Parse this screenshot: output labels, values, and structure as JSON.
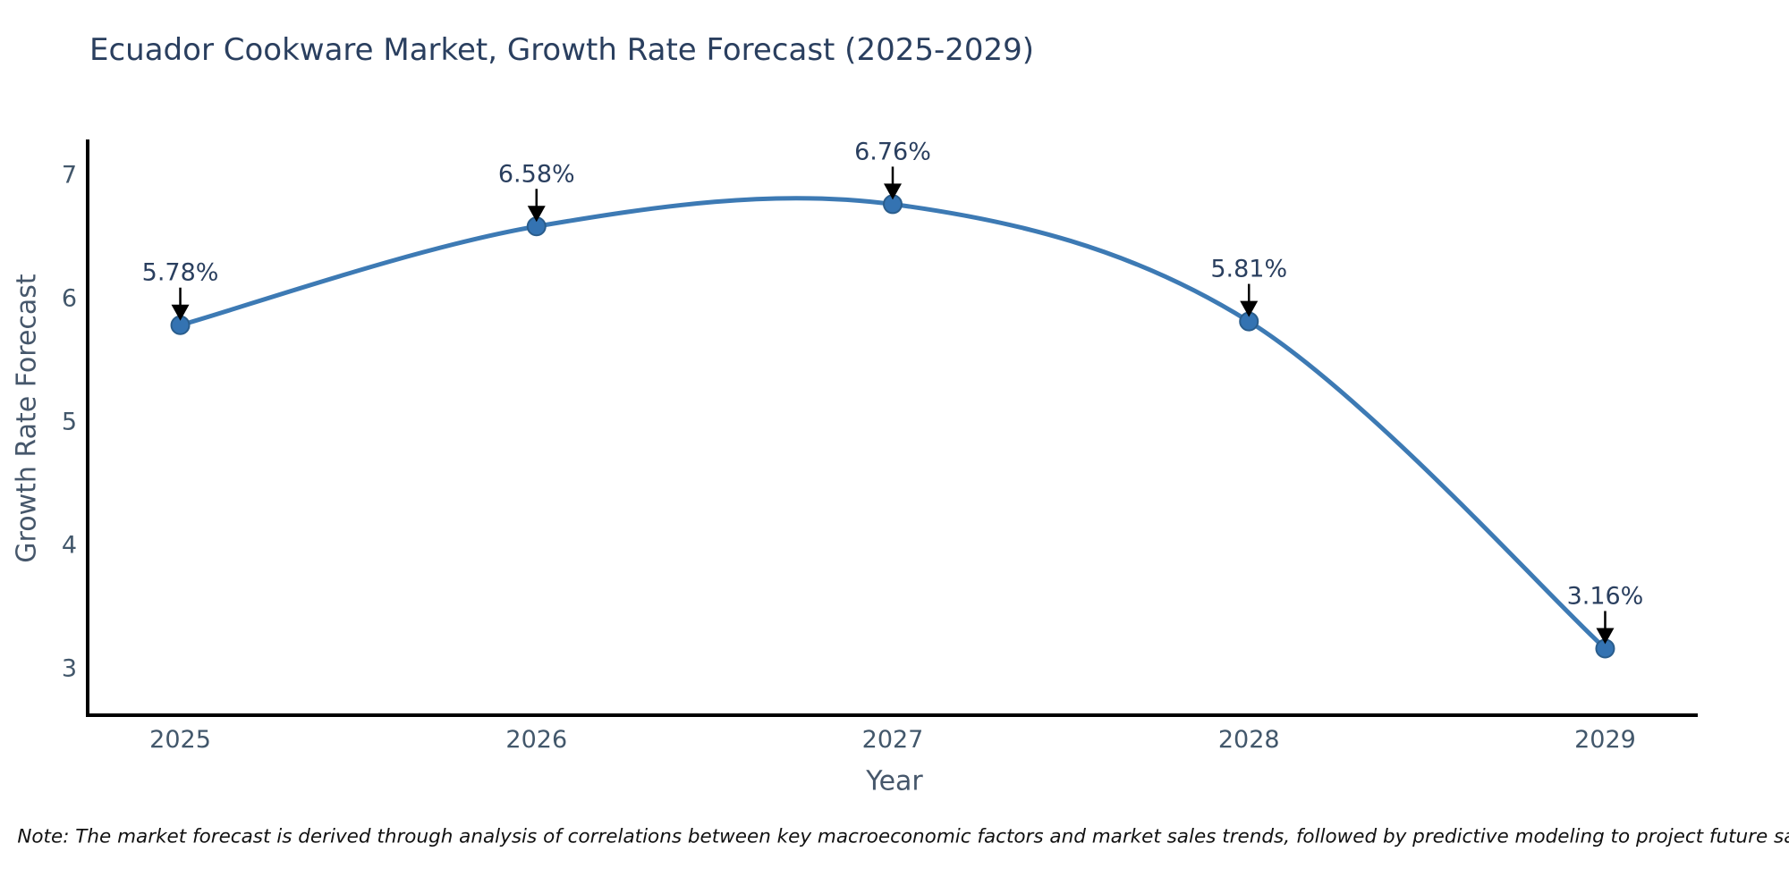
{
  "chart_data": {
    "type": "line",
    "title": "Ecuador Cookware Market, Growth Rate Forecast (2025-2029)",
    "xlabel": "Year",
    "ylabel": "Growth Rate Forecast",
    "x": [
      2025,
      2026,
      2027,
      2028,
      2029
    ],
    "x_tick_labels": [
      "2025",
      "2026",
      "2027",
      "2028",
      "2029"
    ],
    "series": [
      {
        "name": "Growth Rate Forecast",
        "values": [
          5.78,
          6.58,
          6.76,
          5.81,
          3.16
        ]
      }
    ],
    "point_labels": [
      "5.78%",
      "6.58%",
      "6.76%",
      "5.81%",
      "3.16%"
    ],
    "y_ticks": [
      3,
      4,
      5,
      6,
      7
    ],
    "ylim": [
      2.62,
      7.27
    ],
    "xlim": [
      2024.74,
      2029.26
    ],
    "grid": false,
    "legend": false,
    "line_shape": "spline",
    "colors": {
      "line": "#3d7ab4",
      "marker": "#3473b2",
      "marker_edge": "#2a5d8c",
      "annotation_text": "#2a3f5f",
      "annotation_arrow": "#000000",
      "axis": "#000000",
      "tick_label": "#42576b",
      "axis_title": "#46576b",
      "title": "#2a3f5f",
      "note": "#111111",
      "background": "#ffffff"
    },
    "note": "Note: The market forecast is derived through analysis of correlations between key macroeconomic factors and market sales trends, followed by predictive modeling to project future sales."
  }
}
